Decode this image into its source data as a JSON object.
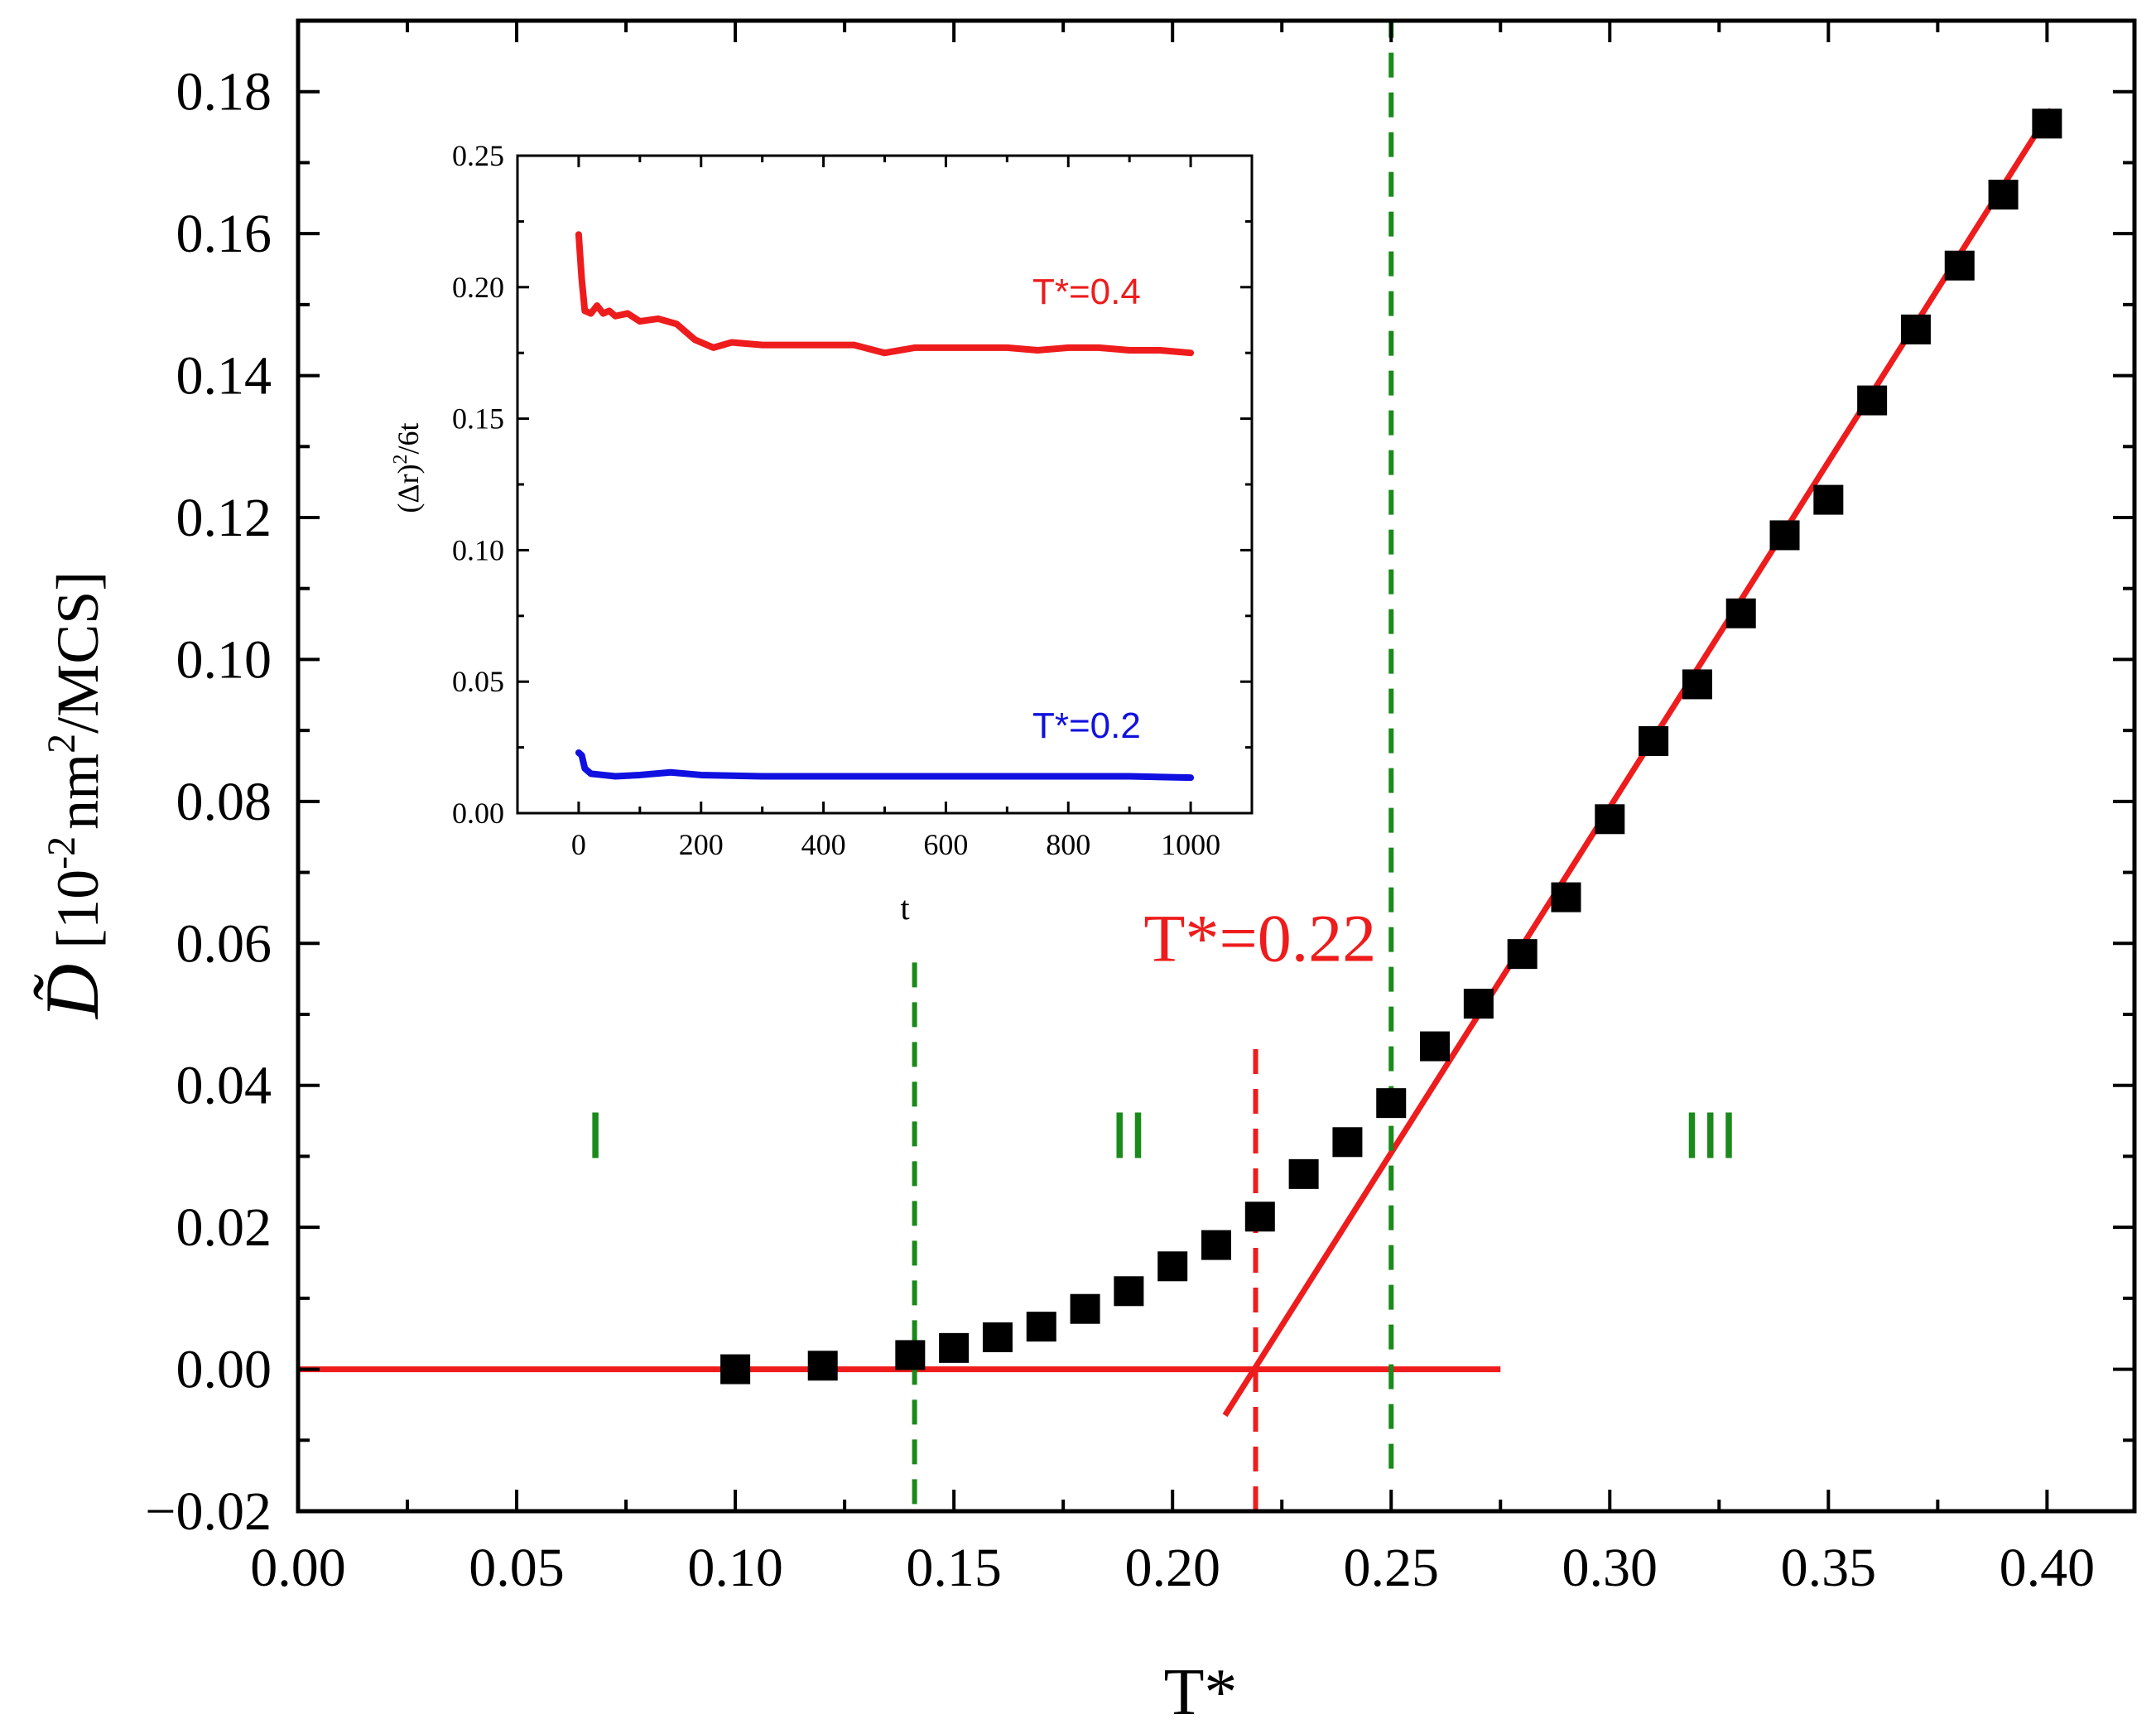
{
  "colors": {
    "axis": "#000000",
    "marker": "#000000",
    "fit": "#ee1c1c",
    "guide_green": "#1a8a1a",
    "guide_red": "#ee1c1c",
    "inset_high": "#ee1c1c",
    "inset_low": "#1010e0",
    "region_label": "#1a8a1a"
  },
  "chart_data": [
    {
      "type": "scatter",
      "role": "main",
      "xlabel": "T*",
      "ylabel": {
        "symbol": "D̃",
        "open": " [10",
        "exp1": "-2",
        "mid": "nm",
        "exp2": "2",
        "close": "/MCS]"
      },
      "xlim": [
        0.0,
        0.42
      ],
      "ylim": [
        -0.02,
        0.19
      ],
      "xticks": [
        0.0,
        0.05,
        0.1,
        0.15,
        0.2,
        0.25,
        0.3,
        0.35,
        0.4
      ],
      "xtick_labels": [
        "0.00",
        "0.05",
        "0.10",
        "0.15",
        "0.20",
        "0.25",
        "0.30",
        "0.35",
        "0.40"
      ],
      "yticks": [
        -0.02,
        0.0,
        0.02,
        0.04,
        0.06,
        0.08,
        0.1,
        0.12,
        0.14,
        0.16,
        0.18
      ],
      "ytick_labels": [
        "−0.02",
        "0.00",
        "0.02",
        "0.04",
        "0.06",
        "0.08",
        "0.10",
        "0.12",
        "0.14",
        "0.16",
        "0.18"
      ],
      "series": [
        {
          "name": "D",
          "marker": "square",
          "x": [
            0.1,
            0.12,
            0.14,
            0.15,
            0.16,
            0.17,
            0.18,
            0.19,
            0.2,
            0.21,
            0.22,
            0.23,
            0.24,
            0.25,
            0.26,
            0.27,
            0.28,
            0.29,
            0.3,
            0.31,
            0.32,
            0.33,
            0.34,
            0.35,
            0.36,
            0.37,
            0.38,
            0.39,
            0.4
          ],
          "y": [
            0.0,
            0.0005,
            0.002,
            0.003,
            0.0045,
            0.006,
            0.0085,
            0.011,
            0.0145,
            0.0175,
            0.0215,
            0.0275,
            0.032,
            0.0375,
            0.0455,
            0.0515,
            0.0585,
            0.0665,
            0.0775,
            0.0885,
            0.0965,
            0.1065,
            0.1175,
            0.1225,
            0.1365,
            0.1465,
            0.1555,
            0.1655,
            0.1755
          ]
        }
      ],
      "fit_lines": [
        {
          "name": "baseline",
          "x": [
            0.0,
            0.275
          ],
          "y": [
            0.0,
            0.0
          ]
        },
        {
          "name": "linear fit",
          "x": [
            0.212,
            0.401
          ],
          "y": [
            -0.0065,
            0.1775
          ]
        }
      ],
      "vlines": [
        {
          "x": 0.141,
          "color": "green",
          "y_from": -0.019,
          "y_to": 0.058
        },
        {
          "x": 0.25,
          "color": "green",
          "y_from": -0.014,
          "y_to": 0.19
        },
        {
          "x": 0.219,
          "color": "red",
          "y_from": -0.02,
          "y_to": 0.047
        }
      ],
      "annotations": [
        {
          "text": "T*=0.22",
          "x": 0.22,
          "y": 0.0575,
          "color": "red"
        },
        {
          "text": "I",
          "x": 0.068,
          "y": 0.033,
          "color": "green"
        },
        {
          "text": "II",
          "x": 0.19,
          "y": 0.033,
          "color": "green"
        },
        {
          "text": "III",
          "x": 0.323,
          "y": 0.033,
          "color": "green"
        }
      ]
    },
    {
      "type": "line",
      "role": "inset",
      "xlabel": "t",
      "ylabel": {
        "open": "(Δr)",
        "exp": "2",
        "close": "/6t"
      },
      "xlim": [
        -100,
        1100
      ],
      "ylim": [
        0.0,
        0.25
      ],
      "xticks": [
        0,
        200,
        400,
        600,
        800,
        1000
      ],
      "xtick_labels": [
        "0",
        "200",
        "400",
        "600",
        "800",
        "1000"
      ],
      "yticks": [
        0.0,
        0.05,
        0.1,
        0.15,
        0.2,
        0.25
      ],
      "ytick_labels": [
        "0.00",
        "0.05",
        "0.10",
        "0.15",
        "0.20",
        "0.25"
      ],
      "series": [
        {
          "name": "T*=0.4",
          "x": [
            0,
            5,
            10,
            20,
            30,
            40,
            50,
            60,
            80,
            100,
            130,
            160,
            190,
            220,
            250,
            300,
            350,
            400,
            450,
            500,
            550,
            600,
            650,
            700,
            750,
            800,
            850,
            900,
            950,
            1000
          ],
          "y": [
            0.22,
            0.203,
            0.191,
            0.19,
            0.193,
            0.19,
            0.191,
            0.189,
            0.19,
            0.187,
            0.188,
            0.186,
            0.18,
            0.177,
            0.179,
            0.178,
            0.178,
            0.178,
            0.178,
            0.175,
            0.177,
            0.177,
            0.177,
            0.177,
            0.176,
            0.177,
            0.177,
            0.176,
            0.176,
            0.175
          ]
        },
        {
          "name": "T*=0.2",
          "x": [
            0,
            5,
            10,
            20,
            40,
            60,
            100,
            150,
            200,
            300,
            400,
            500,
            600,
            700,
            800,
            900,
            1000
          ],
          "y": [
            0.023,
            0.022,
            0.017,
            0.015,
            0.0145,
            0.014,
            0.0145,
            0.0155,
            0.0145,
            0.014,
            0.014,
            0.014,
            0.014,
            0.014,
            0.014,
            0.014,
            0.0135
          ]
        }
      ],
      "annotations": [
        {
          "text": "T*=0.4",
          "x": 830,
          "y": 0.198,
          "color": "red"
        },
        {
          "text": "T*=0.2",
          "x": 830,
          "y": 0.033,
          "color": "blue"
        }
      ]
    }
  ]
}
